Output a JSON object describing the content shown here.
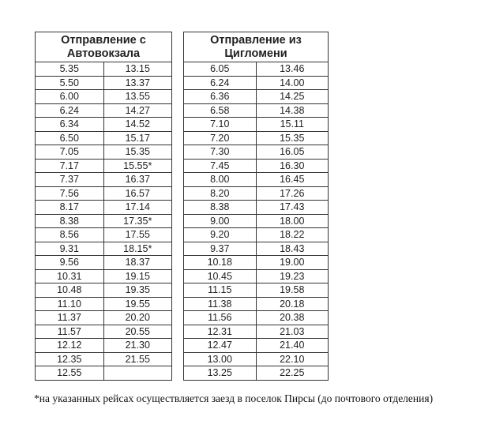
{
  "tables": [
    {
      "title_line1": "Отправление с",
      "title_line2": "Автовокзала",
      "rows": [
        [
          "5.35",
          "13.15"
        ],
        [
          "5.50",
          "13.37"
        ],
        [
          "6.00",
          "13.55"
        ],
        [
          "6.24",
          "14.27"
        ],
        [
          "6.34",
          "14.52"
        ],
        [
          "6.50",
          "15.17"
        ],
        [
          "7.05",
          "15.35"
        ],
        [
          "7.17",
          "15.55*"
        ],
        [
          "7.37",
          "16.37"
        ],
        [
          "7.56",
          "16.57"
        ],
        [
          "8.17",
          "17.14"
        ],
        [
          "8.38",
          "17.35*"
        ],
        [
          "8.56",
          "17.55"
        ],
        [
          "9.31",
          "18.15*"
        ],
        [
          "9.56",
          "18.37"
        ],
        [
          "10.31",
          "19.15"
        ],
        [
          "10.48",
          "19.35"
        ],
        [
          "11.10",
          "19.55"
        ],
        [
          "11.37",
          "20.20"
        ],
        [
          "11.57",
          "20.55"
        ],
        [
          "12.12",
          "21.30"
        ],
        [
          "12.35",
          "21.55"
        ],
        [
          "12.55",
          ""
        ]
      ]
    },
    {
      "title_line1": "Отправление из",
      "title_line2": "Цигломени",
      "rows": [
        [
          "6.05",
          "13.46"
        ],
        [
          "6.24",
          "14.00"
        ],
        [
          "6.36",
          "14.25"
        ],
        [
          "6.58",
          "14.38"
        ],
        [
          "7.10",
          "15.11"
        ],
        [
          "7.20",
          "15.35"
        ],
        [
          "7.30",
          "16.05"
        ],
        [
          "7.45",
          "16.30"
        ],
        [
          "8.00",
          "16.45"
        ],
        [
          "8.20",
          "17.26"
        ],
        [
          "8.38",
          "17.43"
        ],
        [
          "9.00",
          "18.00"
        ],
        [
          "9.20",
          "18.22"
        ],
        [
          "9.37",
          "18.43"
        ],
        [
          "10.18",
          "19.00"
        ],
        [
          "10.45",
          "19.23"
        ],
        [
          "11.15",
          "19.58"
        ],
        [
          "11.38",
          "20.18"
        ],
        [
          "11.56",
          "20.38"
        ],
        [
          "12.31",
          "21.03"
        ],
        [
          "12.47",
          "21.40"
        ],
        [
          "13.00",
          "22.10"
        ],
        [
          "13.25",
          "22.25"
        ]
      ]
    }
  ],
  "footnote": "*на указанных рейсах осуществляется заезд в поселок Пирсы (до почтового отделения)"
}
